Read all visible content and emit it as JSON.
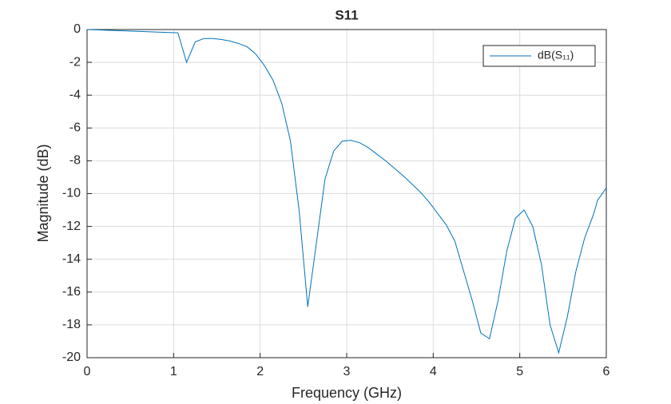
{
  "chart_data": {
    "type": "line",
    "title": "S11",
    "xlabel": "Frequency (GHz)",
    "ylabel": "Magnitude (dB)",
    "xlim": [
      0,
      6
    ],
    "xticks": [
      0,
      1,
      2,
      3,
      4,
      5,
      6
    ],
    "ylim": [
      -20,
      0
    ],
    "yticks": [
      -20,
      -18,
      -16,
      -14,
      -12,
      -10,
      -8,
      -6,
      -4,
      -2,
      0
    ],
    "grid": true,
    "legend": "top-right",
    "series": [
      {
        "name": "dB(S₁₁)",
        "color": "#0072bd",
        "x": [
          0,
          1.05,
          1.15,
          1.25,
          1.35,
          1.45,
          1.55,
          1.65,
          1.75,
          1.85,
          1.95,
          2.05,
          2.15,
          2.25,
          2.35,
          2.45,
          2.55,
          2.65,
          2.75,
          2.85,
          2.95,
          3.05,
          3.15,
          3.25,
          3.35,
          3.45,
          3.55,
          3.65,
          3.75,
          3.85,
          3.95,
          4.05,
          4.15,
          4.25,
          4.35,
          4.45,
          4.55,
          4.65,
          4.75,
          4.85,
          4.95,
          5.05,
          5.15,
          5.25,
          5.35,
          5.45,
          5.55,
          5.65,
          5.75,
          5.85,
          5.9,
          6.0
        ],
        "values": [
          0,
          -0.2,
          -2.0,
          -0.75,
          -0.55,
          -0.55,
          -0.6,
          -0.7,
          -0.85,
          -1.05,
          -1.5,
          -2.2,
          -3.1,
          -4.5,
          -6.8,
          -11,
          -16.9,
          -13,
          -9.1,
          -7.4,
          -6.8,
          -6.75,
          -6.9,
          -7.2,
          -7.6,
          -8.0,
          -8.45,
          -8.9,
          -9.4,
          -9.9,
          -10.5,
          -11.2,
          -11.9,
          -12.9,
          -14.7,
          -16.5,
          -18.5,
          -18.85,
          -16.5,
          -13.5,
          -11.5,
          -11.0,
          -12.0,
          -14.3,
          -18,
          -19.7,
          -17.5,
          -14.7,
          -12.7,
          -11.3,
          -10.4,
          -9.65
        ]
      }
    ]
  }
}
